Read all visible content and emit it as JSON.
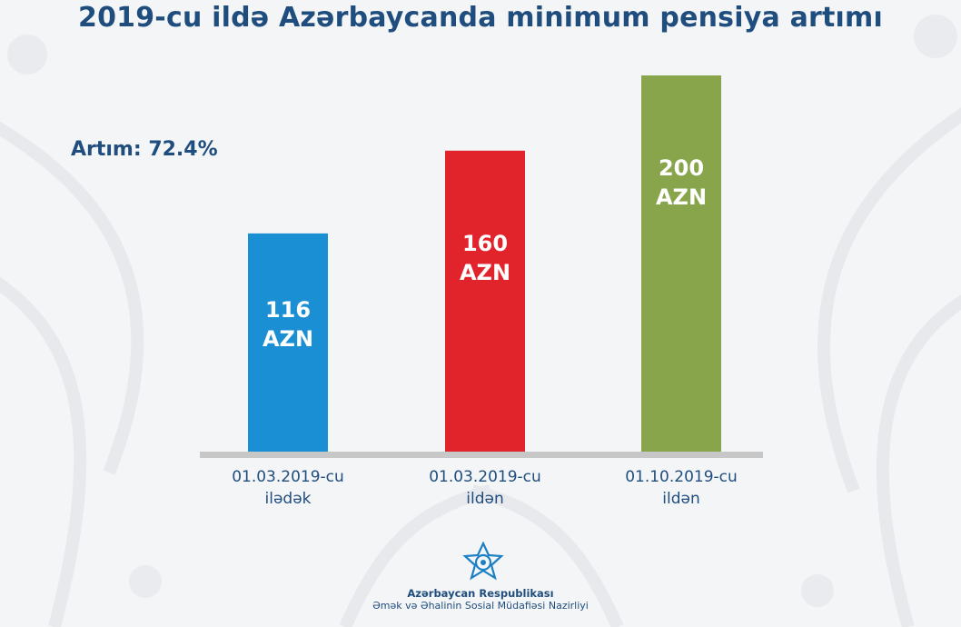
{
  "title": "2019-cu ildə Azərbaycanda minimum pensiya artımı",
  "growth_label": "Artım: 72.4%",
  "colors": {
    "title": "#1f4d7e",
    "bar1": "#1a8fd3",
    "bar2": "#e1232b",
    "bar3": "#88a54c",
    "axis": "#c7c7c7"
  },
  "chart_data": {
    "type": "bar",
    "title": "2019-cu ildə Azərbaycanda minimum pensiya artımı",
    "categories": [
      "01.03.2019-cu ilədək",
      "01.03.2019-cu ildən",
      "01.10.2019-cu ildən"
    ],
    "category_lines": [
      [
        "01.03.2019-cu",
        "ilədək"
      ],
      [
        "01.03.2019-cu",
        "ildən"
      ],
      [
        "01.10.2019-cu",
        "ildən"
      ]
    ],
    "values": [
      116,
      160,
      200
    ],
    "value_labels": [
      [
        "116",
        "AZN"
      ],
      [
        "160",
        "AZN"
      ],
      [
        "200",
        "AZN"
      ]
    ],
    "unit": "AZN",
    "bar_colors": [
      "#1a8fd3",
      "#e1232b",
      "#88a54c"
    ],
    "xlabel": "",
    "ylabel": "",
    "ylim": [
      0,
      200
    ],
    "grid": false,
    "legend": "none"
  },
  "footer": {
    "line1": "Azərbaycan Respublikası",
    "line2": "Əmək və Əhalinin Sosial Müdafiəsi Nazirliyi"
  }
}
